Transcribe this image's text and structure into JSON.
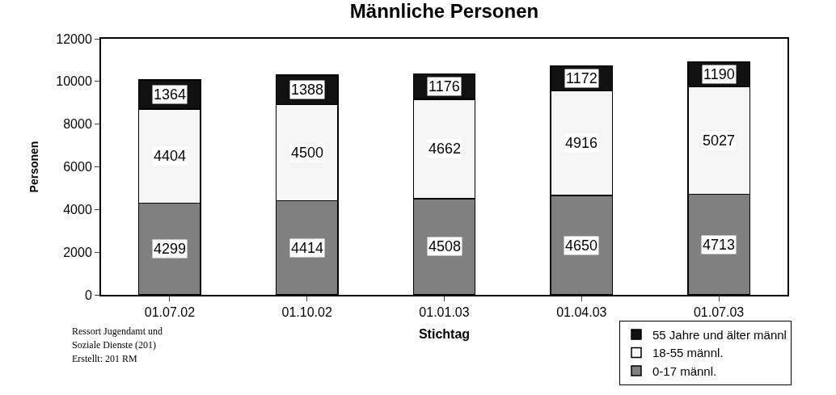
{
  "chart_data": {
    "type": "bar",
    "title": "Männliche Personen",
    "xlabel": "Stichtag",
    "ylabel": "Personen",
    "categories": [
      "01.07.02",
      "01.10.02",
      "01.01.03",
      "01.04.03",
      "01.07.03"
    ],
    "stacked": true,
    "series": [
      {
        "name": "0-17 männl.",
        "color": "#808080",
        "values": [
          4299,
          4414,
          4508,
          4650,
          4713
        ]
      },
      {
        "name": "18-55 männl.",
        "color": "#f5f5f5",
        "values": [
          4404,
          4500,
          4662,
          4916,
          5027
        ]
      },
      {
        "name": "55 Jahre und älter männl",
        "color": "#111111",
        "values": [
          1364,
          1388,
          1176,
          1172,
          1190
        ]
      }
    ],
    "ylim": [
      0,
      12000
    ],
    "yticks": [
      0,
      2000,
      4000,
      6000,
      8000,
      10000,
      12000
    ],
    "grid": false,
    "legend": "bottom right",
    "data_labels": true,
    "annotations": [
      "Ressort Jugendamt und",
      "Soziale Dienste (201)",
      "Erstellt: 201 RM"
    ]
  }
}
